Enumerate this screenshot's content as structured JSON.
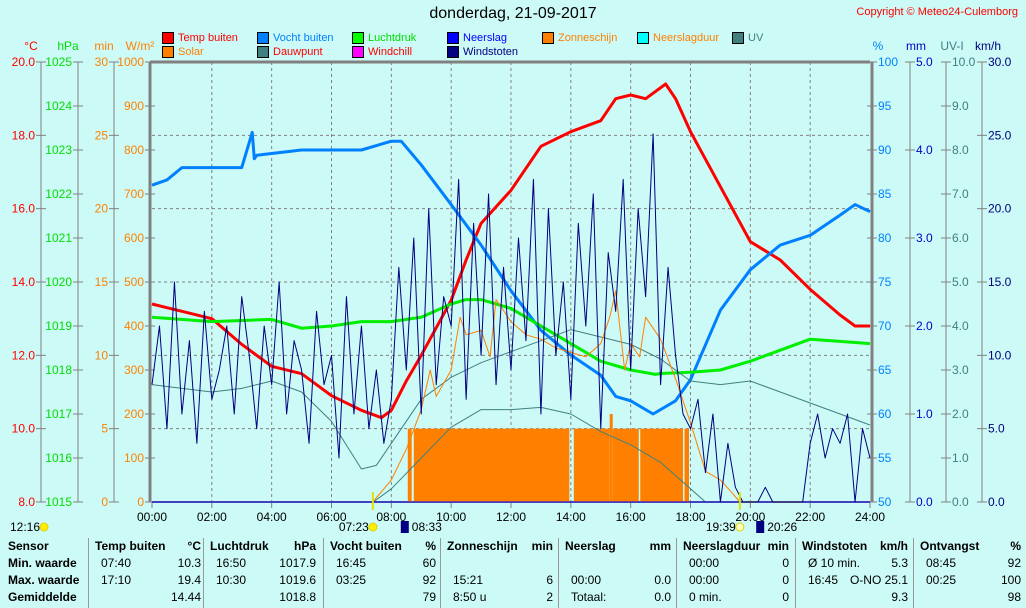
{
  "title": "donderdag, 21-09-2017",
  "copyright": "Copyright © Meteo24-Culemborg",
  "legend": [
    {
      "label": "Temp buiten",
      "color": "#ff0000",
      "text_color": "#ff0000"
    },
    {
      "label": "Solar",
      "color": "#ff8000",
      "text_color": "#ff8000"
    },
    {
      "label": "Vocht buiten",
      "color": "#0080ff",
      "text_color": "#0080ff"
    },
    {
      "label": "Dauwpunt",
      "color": "#408080",
      "text_color": "#ff0000"
    },
    {
      "label": "Luchtdruk",
      "color": "#00ff00",
      "text_color": "#00dd00"
    },
    {
      "label": "Windchill",
      "color": "#ff00ff",
      "text_color": "#ff0000"
    },
    {
      "label": "Neerslag",
      "color": "#0000ff",
      "text_color": "#0000ff"
    },
    {
      "label": "Windstoten",
      "color": "#000080",
      "text_color": "#000080"
    },
    {
      "label": "Zonneschijn",
      "color": "#ff8000",
      "text_color": "#ff8000"
    },
    {
      "label": "Neerslagduur",
      "color": "#00ffff",
      "text_color": "#ff8000"
    },
    {
      "label": "UV",
      "color": "#408080",
      "text_color": "#408080"
    }
  ],
  "chart_data": {
    "type": "line",
    "title": "donderdag, 21-09-2017",
    "x_ticks": [
      "00:00",
      "02:00",
      "04:00",
      "06:00",
      "08:00",
      "10:00",
      "12:00",
      "14:00",
      "16:00",
      "18:00",
      "20:00",
      "22:00",
      "24:00"
    ],
    "xlim_hours": [
      0,
      24
    ],
    "grid": true,
    "axes": {
      "temp": {
        "unit": "°C",
        "min": 8,
        "max": 20,
        "side": "left",
        "color": "#ff0000",
        "ticks": [
          "20.0",
          "18.0",
          "16.0",
          "14.0",
          "12.0",
          "10.0",
          "8.0"
        ]
      },
      "press": {
        "unit": "hPa",
        "min": 1015,
        "max": 1025,
        "side": "left",
        "color": "#00dd00",
        "ticks": [
          "1025",
          "1024",
          "1023",
          "1022",
          "1021",
          "1020",
          "1019",
          "1018",
          "1017",
          "1016",
          "1015"
        ]
      },
      "sunmin": {
        "unit": "min",
        "min": 0,
        "max": 30,
        "side": "left",
        "color": "#ff8000",
        "ticks": [
          "30",
          "25",
          "20",
          "15",
          "10",
          "5",
          "0"
        ]
      },
      "solar": {
        "unit": "W/m²",
        "min": 0,
        "max": 1000,
        "side": "left",
        "color": "#ff8000",
        "ticks": [
          "1000",
          "900",
          "800",
          "700",
          "600",
          "500",
          "400",
          "300",
          "200",
          "100",
          "0"
        ]
      },
      "hum": {
        "unit": "%",
        "min": 50,
        "max": 100,
        "side": "right",
        "color": "#0080ff",
        "ticks": [
          "100",
          "95",
          "90",
          "85",
          "80",
          "75",
          "70",
          "65",
          "60",
          "55",
          "50"
        ]
      },
      "rain": {
        "unit": "mm",
        "min": 0,
        "max": 5,
        "side": "right",
        "color": "#0000cc",
        "ticks": [
          "5.0",
          "4.0",
          "3.0",
          "2.0",
          "1.0",
          "0.0"
        ]
      },
      "uv": {
        "unit": "UV-I",
        "min": 0,
        "max": 10,
        "side": "right",
        "color": "#408080",
        "ticks": [
          "10.0",
          "9.0",
          "8.0",
          "7.0",
          "6.0",
          "5.0",
          "4.0",
          "3.0",
          "2.0",
          "1.0",
          "0.0"
        ]
      },
      "wind": {
        "unit": "km/h",
        "min": 0,
        "max": 30,
        "side": "right",
        "color": "#000080",
        "ticks": [
          "30.0",
          "25.0",
          "20.0",
          "15.0",
          "10.0",
          "5.0",
          "0.0"
        ]
      }
    },
    "sunshine": {
      "axis": "sunmin",
      "color": "#ff8000",
      "periods": [
        [
          8.55,
          8.68,
          5
        ],
        [
          8.75,
          13.95,
          5
        ],
        [
          14.1,
          15.3,
          5
        ],
        [
          15.3,
          15.4,
          6
        ],
        [
          15.4,
          16.27,
          5
        ],
        [
          16.32,
          17.75,
          5
        ],
        [
          17.8,
          17.95,
          5
        ]
      ]
    },
    "series": [
      {
        "name": "Temp buiten",
        "axis": "temp",
        "color": "#ff0000",
        "width": 3,
        "x": [
          0,
          0.5,
          1,
          2,
          3,
          4,
          5,
          6,
          7,
          7.67,
          8,
          8.5,
          9,
          10,
          10.5,
          11,
          12,
          13,
          14,
          15,
          15.5,
          16,
          16.5,
          17.17,
          17.5,
          18,
          19,
          20,
          21,
          22,
          23,
          23.5,
          24
        ],
        "y": [
          13.4,
          13.3,
          13.2,
          13.0,
          12.3,
          11.7,
          11.5,
          10.9,
          10.5,
          10.3,
          10.5,
          11.3,
          12.0,
          13.5,
          14.6,
          15.6,
          16.5,
          17.7,
          18.1,
          18.4,
          19.0,
          19.1,
          19.0,
          19.4,
          19.0,
          18.1,
          16.6,
          15.1,
          14.6,
          13.8,
          13.1,
          12.8,
          12.8
        ]
      },
      {
        "name": "Vocht buiten",
        "axis": "hum",
        "color": "#0080ff",
        "width": 3,
        "x": [
          0,
          0.5,
          1,
          2,
          3,
          3.35,
          3.42,
          3.5,
          5,
          7,
          8,
          8.33,
          9,
          10,
          11,
          12,
          13,
          14,
          15,
          15.5,
          16,
          16.75,
          17.5,
          18,
          19,
          20,
          21,
          22,
          23,
          23.5,
          24
        ],
        "y": [
          86,
          86.6,
          88,
          88,
          88,
          92,
          89,
          89.4,
          90,
          90,
          91,
          91,
          88.3,
          83.8,
          79.2,
          74,
          69.5,
          66.7,
          64.4,
          62,
          61.5,
          60,
          61.5,
          63.9,
          71.8,
          76.4,
          79.2,
          80.3,
          82.6,
          83.8,
          83
        ]
      },
      {
        "name": "Luchtdruk",
        "axis": "press",
        "color": "#00ee00",
        "width": 3,
        "x": [
          0,
          2,
          4,
          5,
          6,
          7,
          8,
          9,
          10,
          10.5,
          11,
          12,
          13,
          14,
          15,
          16,
          16.83,
          17,
          18,
          19,
          20,
          21,
          22,
          23,
          24
        ],
        "y": [
          1019.2,
          1019.1,
          1019.15,
          1018.95,
          1019.0,
          1019.1,
          1019.1,
          1019.2,
          1019.5,
          1019.6,
          1019.6,
          1019.4,
          1019.0,
          1018.6,
          1018.2,
          1018.0,
          1017.9,
          1017.92,
          1017.95,
          1018.0,
          1018.2,
          1018.45,
          1018.7,
          1018.65,
          1018.6
        ]
      },
      {
        "name": "Dauwpunt",
        "axis": "temp",
        "color": "#408080",
        "width": 1,
        "x": [
          0,
          1,
          2,
          3,
          4,
          5,
          6,
          7,
          7.5,
          8,
          9,
          10,
          11,
          12,
          13,
          14,
          15,
          16,
          17,
          18,
          19,
          20,
          21,
          22,
          23,
          24
        ],
        "y": [
          11.2,
          11.1,
          11.0,
          11.1,
          11.3,
          11.0,
          10.2,
          8.9,
          9.0,
          9.6,
          10.8,
          11.4,
          11.8,
          12.1,
          12.4,
          12.7,
          12.5,
          12.3,
          11.9,
          11.3,
          11.2,
          11.3,
          11.0,
          10.7,
          10.4,
          10.1
        ]
      },
      {
        "name": "UV",
        "axis": "uv",
        "color": "#408080",
        "width": 1,
        "x": [
          0,
          7.4,
          8,
          9,
          10,
          11,
          12,
          13,
          14,
          15,
          16,
          17,
          18,
          18.5,
          24
        ],
        "y": [
          0,
          0,
          0.3,
          1.0,
          1.7,
          2.1,
          2.1,
          2.15,
          2.0,
          1.6,
          1.3,
          0.9,
          0.3,
          0,
          0
        ]
      },
      {
        "name": "Solar",
        "axis": "solar",
        "color": "#ff8000",
        "width": 1,
        "x": [
          0,
          7.38,
          8,
          8.5,
          9,
          9.3,
          9.5,
          10,
          10.3,
          10.5,
          11,
          11.3,
          11.5,
          12,
          12.5,
          13,
          13.5,
          14,
          14.5,
          15,
          15.3,
          15.5,
          15.8,
          16,
          16.3,
          16.5,
          17,
          17.5,
          18,
          18.5,
          19,
          19.4,
          19.65,
          24
        ],
        "y": [
          0,
          0,
          50,
          120,
          210,
          300,
          240,
          300,
          420,
          380,
          390,
          330,
          460,
          410,
          380,
          370,
          350,
          340,
          330,
          360,
          420,
          480,
          300,
          360,
          330,
          420,
          370,
          280,
          180,
          70,
          50,
          20,
          0,
          0
        ]
      },
      {
        "name": "Neerslag",
        "axis": "rain",
        "color": "#0000ff",
        "width": 1,
        "x": [
          0,
          24
        ],
        "y": [
          0,
          0
        ]
      },
      {
        "name": "Windstoten",
        "axis": "wind",
        "color": "#000080",
        "width": 1,
        "interval_hours": 0.25,
        "y": [
          8,
          12,
          5,
          15,
          6,
          11,
          4,
          13,
          7,
          9,
          12,
          6,
          14,
          10,
          5,
          12,
          8,
          15,
          6,
          11,
          9,
          4,
          13,
          8,
          10,
          3,
          14,
          6,
          12,
          5,
          9,
          4,
          7,
          16,
          9,
          18,
          6,
          20,
          8,
          14,
          12,
          22,
          7,
          19,
          10,
          21,
          8,
          16,
          9,
          18,
          11,
          22,
          6,
          20,
          10,
          15,
          7,
          19,
          12,
          21,
          5,
          17,
          13,
          22,
          9,
          20,
          14,
          25.1,
          8,
          16,
          10,
          6,
          5,
          7,
          2,
          6,
          0,
          4,
          1,
          0,
          0,
          0,
          1,
          0,
          0,
          0,
          0,
          0,
          4,
          6,
          3,
          5,
          4,
          6,
          0,
          5,
          3
        ]
      }
    ],
    "sun_events": [
      {
        "label": "12:16",
        "icon": "sun",
        "hour": null
      },
      {
        "label": "07:23",
        "icon": "sunrise",
        "hour": 7.383
      },
      {
        "label": "08:33",
        "icon": "moonset",
        "hour": 8.55
      },
      {
        "label": "19:39",
        "icon": "sunset",
        "hour": 19.65
      },
      {
        "label": "20:26",
        "icon": "moonrise",
        "hour": 20.43
      }
    ]
  },
  "stats": {
    "row_labels": [
      "Sensor",
      "Min. waarde",
      "Max. waarde",
      "Gemiddelde"
    ],
    "columns": [
      {
        "name": "Temp buiten",
        "unit": "°C",
        "rows": [
          [
            "07:40",
            "10.3"
          ],
          [
            "17:10",
            "19.4"
          ],
          [
            "",
            "14.44"
          ]
        ]
      },
      {
        "name": "Luchtdruk",
        "unit": "hPa",
        "rows": [
          [
            "16:50",
            "1017.9"
          ],
          [
            "10:30",
            "1019.6"
          ],
          [
            "",
            "1018.8"
          ]
        ]
      },
      {
        "name": "Vocht buiten",
        "unit": "%",
        "rows": [
          [
            "16:45",
            "60"
          ],
          [
            "03:25",
            "92"
          ],
          [
            "",
            "79"
          ]
        ]
      },
      {
        "name": "Zonneschijn",
        "unit": "min",
        "rows": [
          [
            "",
            ""
          ],
          [
            "15:21",
            "6"
          ],
          [
            "8:50 u",
            "2"
          ]
        ]
      },
      {
        "name": "Neerslag",
        "unit": "mm",
        "rows": [
          [
            "",
            ""
          ],
          [
            "00:00",
            "0.0"
          ],
          [
            "Totaal:",
            "0.0"
          ]
        ]
      },
      {
        "name": "Neerslagduur",
        "unit": "min",
        "rows": [
          [
            "00:00",
            "0"
          ],
          [
            "00:00",
            "0"
          ],
          [
            "0 min.",
            "0"
          ]
        ]
      },
      {
        "name": "Windstoten",
        "unit": "km/h",
        "rows": [
          [
            "Ø 10 min.",
            "5.3"
          ],
          [
            "16:45",
            "O-NO 25.1"
          ],
          [
            "",
            "9.3"
          ]
        ]
      },
      {
        "name": "Ontvangst",
        "unit": "%",
        "rows": [
          [
            "08:45",
            "92"
          ],
          [
            "00:25",
            "100"
          ],
          [
            "",
            "98"
          ]
        ]
      }
    ]
  }
}
